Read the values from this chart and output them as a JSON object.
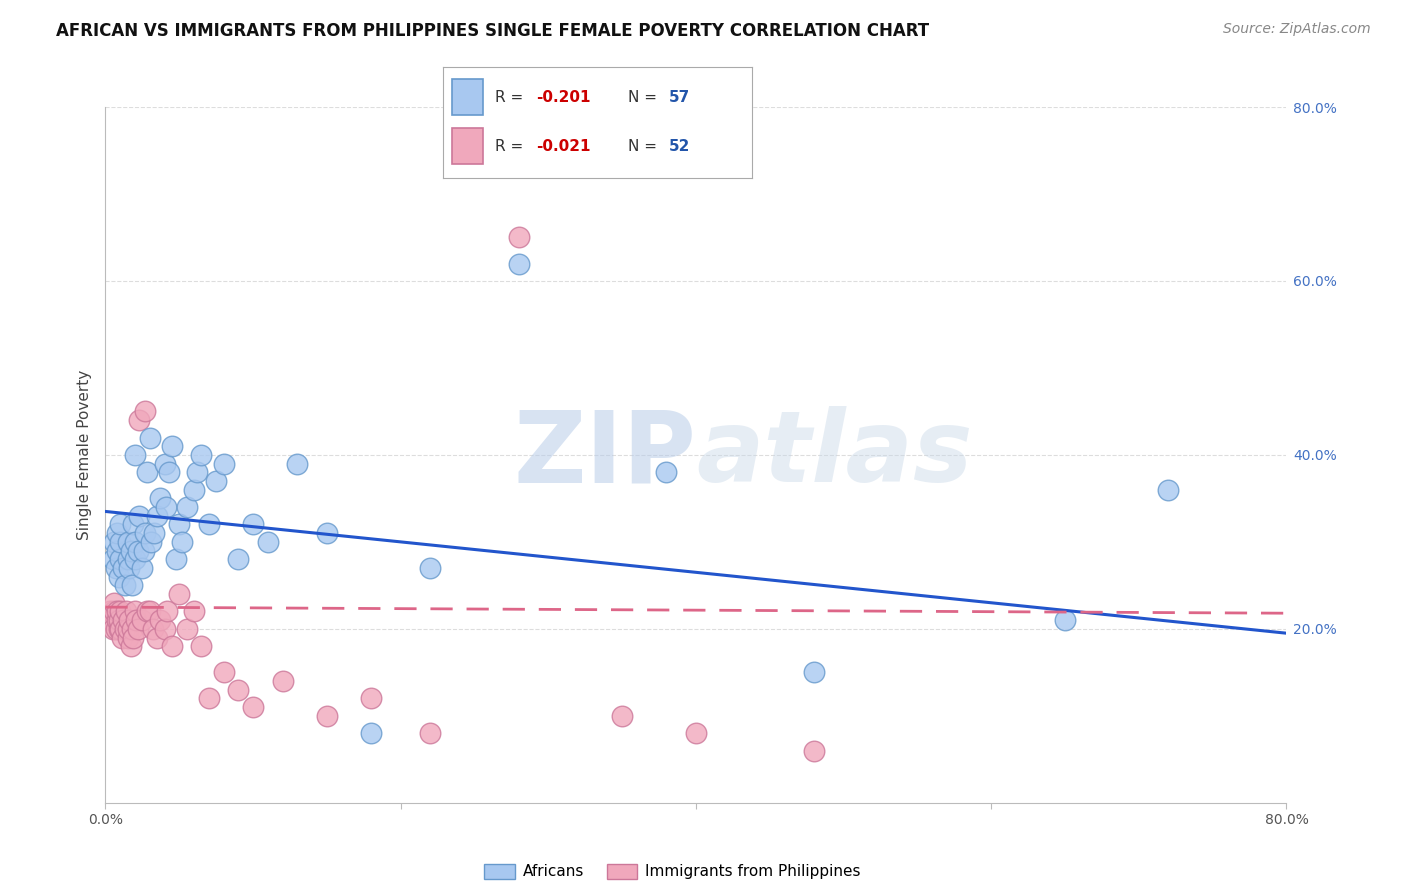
{
  "title": "AFRICAN VS IMMIGRANTS FROM PHILIPPINES SINGLE FEMALE POVERTY CORRELATION CHART",
  "source": "Source: ZipAtlas.com",
  "ylabel": "Single Female Poverty",
  "xlim": [
    0.0,
    0.8
  ],
  "ylim": [
    0.0,
    0.8
  ],
  "watermark_text": "ZIPatlas",
  "african_color": "#a8c8f0",
  "african_edge": "#6699cc",
  "phil_color": "#f0a8bc",
  "phil_edge": "#cc7799",
  "african_line_color": "#2255cc",
  "phil_line_color": "#dd6688",
  "grid_color": "#dddddd",
  "background_color": "#ffffff",
  "title_fontsize": 12,
  "source_fontsize": 10,
  "axis_label_fontsize": 11,
  "tick_fontsize": 10,
  "right_tick_color": "#4472c4",
  "african_points_x": [
    0.005,
    0.006,
    0.007,
    0.008,
    0.008,
    0.009,
    0.01,
    0.01,
    0.01,
    0.012,
    0.013,
    0.015,
    0.015,
    0.016,
    0.017,
    0.018,
    0.019,
    0.02,
    0.02,
    0.02,
    0.022,
    0.023,
    0.025,
    0.026,
    0.027,
    0.028,
    0.03,
    0.031,
    0.033,
    0.035,
    0.037,
    0.04,
    0.041,
    0.043,
    0.045,
    0.048,
    0.05,
    0.052,
    0.055,
    0.06,
    0.062,
    0.065,
    0.07,
    0.075,
    0.08,
    0.09,
    0.1,
    0.11,
    0.13,
    0.15,
    0.18,
    0.22,
    0.28,
    0.38,
    0.48,
    0.65,
    0.72
  ],
  "african_points_y": [
    0.28,
    0.3,
    0.27,
    0.29,
    0.31,
    0.26,
    0.28,
    0.3,
    0.32,
    0.27,
    0.25,
    0.28,
    0.3,
    0.27,
    0.29,
    0.25,
    0.32,
    0.28,
    0.3,
    0.4,
    0.29,
    0.33,
    0.27,
    0.29,
    0.31,
    0.38,
    0.42,
    0.3,
    0.31,
    0.33,
    0.35,
    0.39,
    0.34,
    0.38,
    0.41,
    0.28,
    0.32,
    0.3,
    0.34,
    0.36,
    0.38,
    0.4,
    0.32,
    0.37,
    0.39,
    0.28,
    0.32,
    0.3,
    0.39,
    0.31,
    0.08,
    0.27,
    0.62,
    0.38,
    0.15,
    0.21,
    0.36
  ],
  "phil_points_x": [
    0.003,
    0.004,
    0.005,
    0.006,
    0.006,
    0.007,
    0.008,
    0.008,
    0.009,
    0.009,
    0.01,
    0.01,
    0.011,
    0.012,
    0.013,
    0.014,
    0.015,
    0.015,
    0.016,
    0.017,
    0.018,
    0.019,
    0.02,
    0.021,
    0.022,
    0.023,
    0.025,
    0.027,
    0.028,
    0.03,
    0.032,
    0.035,
    0.037,
    0.04,
    0.042,
    0.045,
    0.05,
    0.055,
    0.06,
    0.065,
    0.07,
    0.08,
    0.09,
    0.1,
    0.12,
    0.15,
    0.18,
    0.22,
    0.28,
    0.35,
    0.4,
    0.48
  ],
  "phil_points_y": [
    0.22,
    0.21,
    0.2,
    0.22,
    0.23,
    0.2,
    0.21,
    0.22,
    0.2,
    0.21,
    0.2,
    0.22,
    0.19,
    0.21,
    0.2,
    0.22,
    0.19,
    0.2,
    0.21,
    0.18,
    0.2,
    0.19,
    0.22,
    0.21,
    0.2,
    0.44,
    0.21,
    0.45,
    0.22,
    0.22,
    0.2,
    0.19,
    0.21,
    0.2,
    0.22,
    0.18,
    0.24,
    0.2,
    0.22,
    0.18,
    0.12,
    0.15,
    0.13,
    0.11,
    0.14,
    0.1,
    0.12,
    0.08,
    0.65,
    0.1,
    0.08,
    0.06
  ],
  "african_trend_x": [
    0.0,
    0.8
  ],
  "african_trend_y": [
    0.335,
    0.195
  ],
  "phil_trend_x": [
    0.0,
    0.8
  ],
  "phil_trend_y": [
    0.225,
    0.218
  ]
}
